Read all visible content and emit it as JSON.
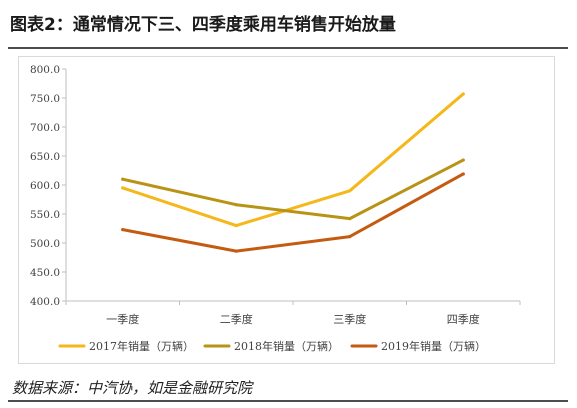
{
  "figure": {
    "title": "图表2：通常情况下三、四季度乘用车销售开始放量",
    "source": "数据来源：中汽协，如是金融研究院"
  },
  "chart_data": {
    "type": "line",
    "categories": [
      "一季度",
      "二季度",
      "三季度",
      "四季度"
    ],
    "ylim": [
      400,
      800
    ],
    "yticks": [
      "400.0",
      "450.0",
      "500.0",
      "550.0",
      "600.0",
      "650.0",
      "700.0",
      "750.0",
      "800.0"
    ],
    "grid": false,
    "legend_position": "bottom",
    "series": [
      {
        "name": "2017年销量（万辆）",
        "color": "#F5B719",
        "values": [
          595,
          530,
          590,
          757
        ]
      },
      {
        "name": "2018年销量（万辆）",
        "color": "#B99316",
        "values": [
          610,
          566,
          542,
          643
        ]
      },
      {
        "name": "2019年销量（万辆）",
        "color": "#C55A11",
        "values": [
          523,
          486,
          511,
          619
        ]
      }
    ]
  }
}
